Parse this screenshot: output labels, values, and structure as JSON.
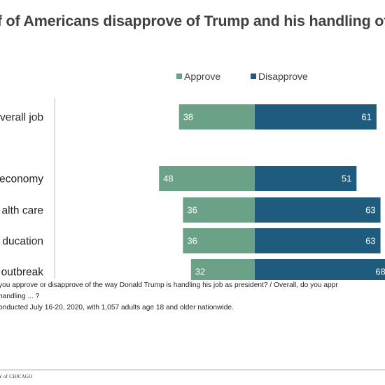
{
  "title": "lf of Americans disapprove of Trump and his handling of v",
  "colors": {
    "approve": "#6aa187",
    "disapprove": "#1e5b7c",
    "label_text": "#ffffff",
    "axis_line": "#bfbfbf"
  },
  "chart_data": {
    "type": "bar",
    "orientation": "horizontal-diverging",
    "legend_position": "top",
    "categories": [
      "verall job",
      "economy",
      "alth care",
      "ducation",
      "outbreak"
    ],
    "series": [
      {
        "name": "Approve",
        "values": [
          38,
          48,
          36,
          36,
          32
        ]
      },
      {
        "name": "Disapprove",
        "values": [
          61,
          51,
          63,
          63,
          68
        ]
      }
    ],
    "data_labels": {
      "approve": [
        "38",
        "48",
        "36",
        "36",
        "32"
      ],
      "disapprove": [
        "61",
        "51",
        "63",
        "63",
        "68"
      ]
    }
  },
  "notes": {
    "line1": "you approve or disapprove of the way Donald Trump is handling his job as president? / Overall, do you appr",
    "line2": "handling ... ?",
    "line3": "onducted July 16-20, 2020,  with 1,057 adults age 18 and older nationwide."
  },
  "footer": {
    "logo_text": "Y of CHICAGO"
  }
}
